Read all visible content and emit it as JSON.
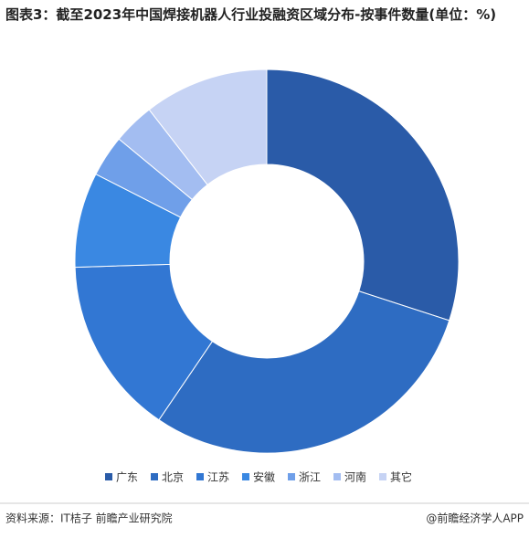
{
  "chart_data": {
    "type": "donut",
    "title": "图表3：截至2023年中国焊接机器人行业投融资区域分布-按事件数量(单位：%)",
    "categories": [
      "广东",
      "北京",
      "江苏",
      "安徽",
      "浙江",
      "河南",
      "其它"
    ],
    "values": [
      30,
      29.5,
      15,
      8,
      3.5,
      3.5,
      10.5
    ],
    "colors": [
      "#2a5ba8",
      "#2e6cc2",
      "#3277d3",
      "#3a88e2",
      "#6f9fe9",
      "#a3bdf1",
      "#c6d3f4"
    ],
    "legend": "bottom",
    "source": "资料来源：IT桔子 前瞻产业研究院",
    "credit": "@前瞻经济学人APP"
  }
}
